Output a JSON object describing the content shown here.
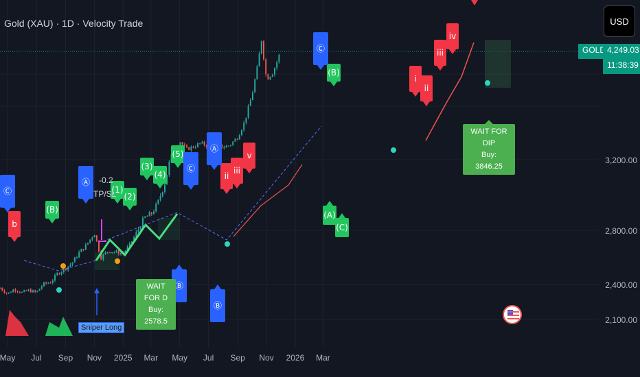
{
  "header": {
    "title": "Gold (XAU) · 1D · Velocity Trade",
    "currency_button": "USD"
  },
  "price_scale": {
    "symbol_tag": "GOLD",
    "last_price": "4,249.03",
    "countdown": "11:38:39"
  },
  "colors": {
    "up": "#26a69a",
    "down": "#ef5350",
    "bull_label": "#22c55e",
    "bear_label": "#f23645",
    "wave_label": "#2962ff",
    "background": "#131722"
  },
  "chart_data": {
    "type": "line",
    "y_ticks": [
      "3,200.00",
      "2,800.00",
      "2,400.00",
      "2,100.00"
    ],
    "x_ticks": [
      "May",
      "Jul",
      "Sep",
      "Nov",
      "2025",
      "Mar",
      "May",
      "Jul",
      "Sep",
      "Nov",
      "2026",
      "Mar"
    ],
    "x": [
      "2024-04-15",
      "2024-05-01",
      "2024-05-15",
      "2024-06-01",
      "2024-06-15",
      "2024-07-01",
      "2024-07-15",
      "2024-08-01",
      "2024-08-15",
      "2024-09-01",
      "2024-09-15",
      "2024-10-01",
      "2024-10-15",
      "2024-11-01",
      "2024-11-15",
      "2024-12-01",
      "2024-12-15",
      "2025-01-01",
      "2025-01-15",
      "2025-02-01",
      "2025-02-15",
      "2025-03-01",
      "2025-03-15",
      "2025-04-01",
      "2025-04-15",
      "2025-05-01",
      "2025-05-15",
      "2025-06-01",
      "2025-06-15",
      "2025-07-01",
      "2025-07-15",
      "2025-08-01",
      "2025-08-15",
      "2025-09-01",
      "2025-09-15",
      "2025-10-01",
      "2025-10-15",
      "2025-10-21",
      "2025-11-01",
      "2025-11-15",
      "2025-12-01"
    ],
    "series": [
      {
        "values": [
          2370,
          2320,
          2360,
          2330,
          2350,
          2330,
          2400,
          2420,
          2480,
          2520,
          2560,
          2640,
          2690,
          2780,
          2600,
          2650,
          2640,
          2630,
          2690,
          2800,
          2870,
          2890,
          2950,
          3080,
          3260,
          3380,
          3300,
          3330,
          3360,
          3330,
          3350,
          3320,
          3340,
          3420,
          3560,
          3820,
          4150,
          4380,
          3980,
          4050,
          4249
        ]
      }
    ],
    "labels": {
      "bull_waves": [
        "(B)",
        "(1)",
        "(2)",
        "(3)",
        "(4)",
        "(5)",
        "(B)",
        "(A)",
        "(C)"
      ],
      "bear_waves": [
        "b",
        "ii",
        "iii",
        "v",
        "i",
        "ii",
        "iii",
        "iv"
      ],
      "abc_waves": [
        "Ⓒ",
        "Ⓐ",
        "Ⓐ",
        "Ⓒ",
        "Ⓑ",
        "Ⓑ",
        "Ⓒ"
      ],
      "indicator_text": [
        "-0.2",
        "TP/SL"
      ]
    },
    "signals": [
      {
        "title": "WAIT FOR D",
        "subtitle": "Buy: 2578.5"
      },
      {
        "title": "WAIT FOR DIP",
        "subtitle": "Buy: 3846.25"
      }
    ],
    "sniper_label": "Sniper Long"
  }
}
